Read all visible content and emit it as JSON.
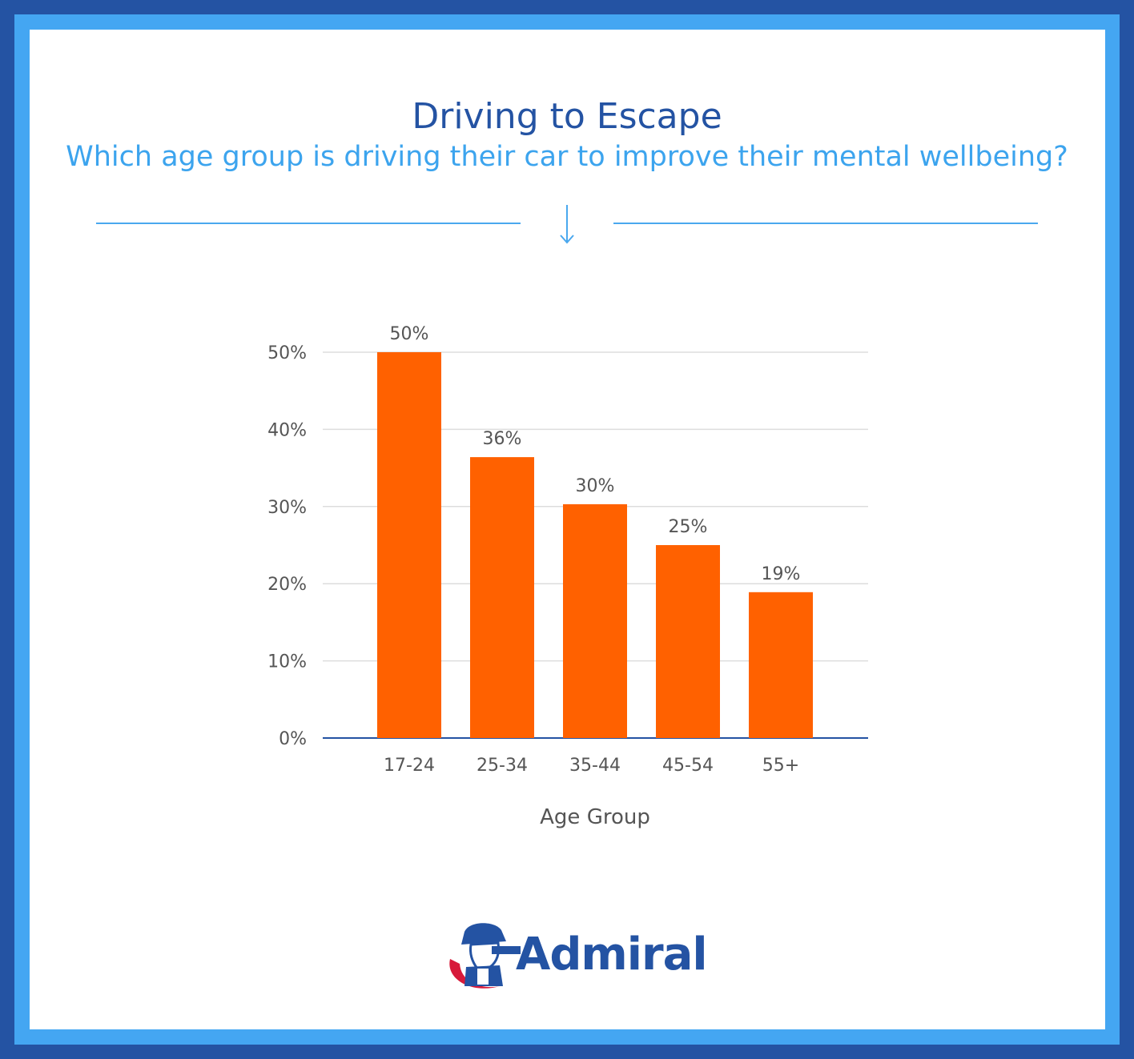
{
  "header": {
    "title": "Driving to Escape",
    "subtitle": "Which age group is driving their car to improve their mental wellbeing?"
  },
  "brand": {
    "logo_text": "Admiral",
    "colors": {
      "navy": "#2453a3",
      "light_blue": "#44a6f2",
      "bar": "#ff6100",
      "grid": "#dddddd"
    }
  },
  "chart_data": {
    "type": "bar",
    "title": "",
    "categories": [
      "17-24",
      "25-34",
      "35-44",
      "45-54",
      "55+"
    ],
    "values": [
      50,
      36.4,
      30.3,
      25,
      18.9
    ],
    "data_labels": [
      "50%",
      "36%",
      "30%",
      "25%",
      "19%"
    ],
    "xlabel": "Age Group",
    "ylabel": "",
    "ylim": [
      0,
      50
    ],
    "yticks": [
      "0%",
      "10%",
      "20%",
      "30%",
      "40%",
      "50%"
    ],
    "ytick_values": [
      0,
      10,
      20,
      30,
      40,
      50
    ],
    "grid": true,
    "legend": "none",
    "bar_color": "#ff6100"
  }
}
